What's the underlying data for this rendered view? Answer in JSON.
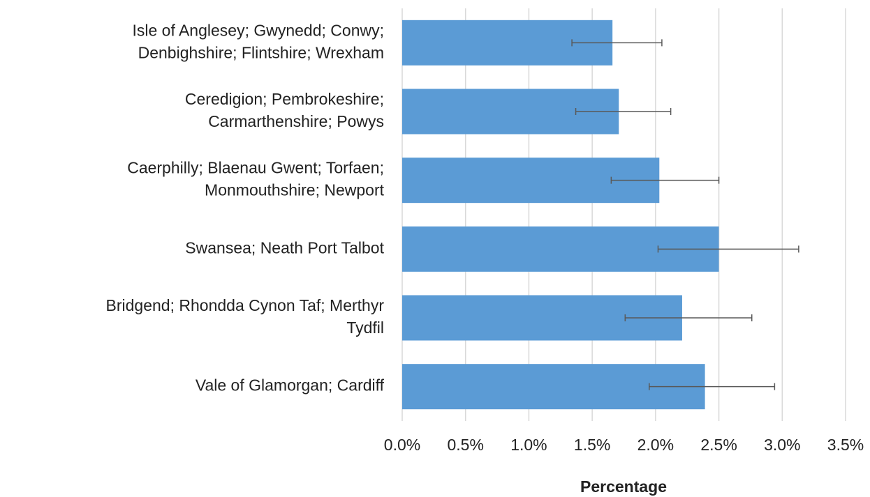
{
  "chart_data": {
    "type": "bar",
    "orientation": "horizontal",
    "categories": [
      [
        "Isle of Anglesey; Gwynedd; Conwy;",
        "Denbighshire; Flintshire; Wrexham"
      ],
      [
        "Ceredigion; Pembrokeshire;",
        "Carmarthenshire; Powys"
      ],
      [
        "Caerphilly; Blaenau Gwent; Torfaen;",
        "Monmouthshire; Newport"
      ],
      [
        "Swansea; Neath Port Talbot"
      ],
      [
        "Bridgend; Rhondda Cynon Taf; Merthyr",
        "Tydfil"
      ],
      [
        "Vale of Glamorgan; Cardiff"
      ]
    ],
    "values": [
      1.66,
      1.71,
      2.03,
      2.5,
      2.21,
      2.39
    ],
    "error_low": [
      1.34,
      1.37,
      1.65,
      2.02,
      1.76,
      1.95
    ],
    "error_high": [
      2.05,
      2.12,
      2.5,
      3.13,
      2.76,
      2.94
    ],
    "color": "#5b9bd5",
    "error_color": "#595959",
    "xlabel": "Percentage",
    "xlim": [
      0,
      3.5
    ],
    "xticks": [
      {
        "value": 0,
        "label": "0.0%"
      },
      {
        "value": 0.5,
        "label": "0.5%"
      },
      {
        "value": 1.0,
        "label": "1.0%"
      },
      {
        "value": 1.5,
        "label": "1.5%"
      },
      {
        "value": 2.0,
        "label": "2.0%"
      },
      {
        "value": 2.5,
        "label": "2.5%"
      },
      {
        "value": 3.0,
        "label": "3.0%"
      },
      {
        "value": 3.5,
        "label": "3.5%"
      }
    ],
    "grid": true
  }
}
